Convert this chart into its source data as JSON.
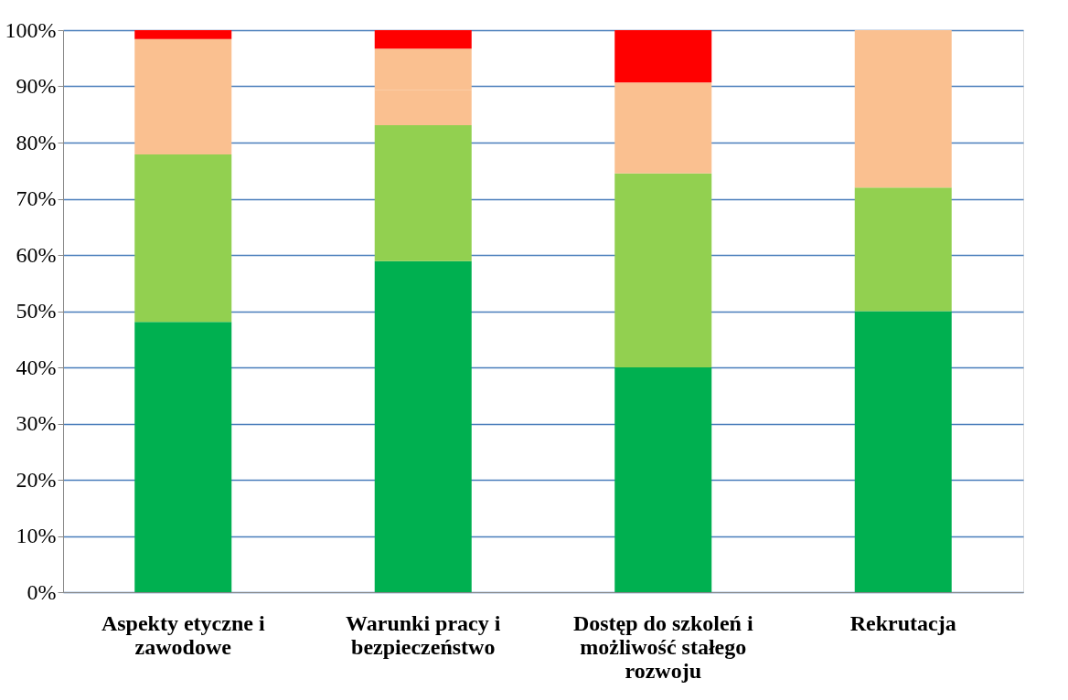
{
  "chart_data": {
    "type": "bar",
    "stacked": true,
    "categories": [
      "Aspekty etyczne i zawodowe",
      "Warunki pracy i bezpieczeństwo",
      "Dostęp do szkoleń i możliwość stałego rozwoju",
      "Rekrutacja"
    ],
    "series": [
      {
        "color": "#00b050",
        "values": [
          48.1,
          58.9,
          40.0,
          50.0
        ]
      },
      {
        "color": "#92d050",
        "values": [
          29.8,
          24.2,
          34.5,
          22.0
        ]
      },
      {
        "color": "#fac090",
        "values": [
          16.1,
          6.2,
          16.2,
          28.0
        ]
      },
      {
        "color": "#fac090",
        "values": [
          4.4,
          7.4,
          null,
          null
        ]
      },
      {
        "color": "#ff0000",
        "values": [
          1.6,
          3.3,
          9.3,
          null
        ]
      }
    ],
    "ylim": [
      0,
      100
    ],
    "yticks": [
      {
        "value": 0,
        "label": "0%"
      },
      {
        "value": 10,
        "label": "10%"
      },
      {
        "value": 20,
        "label": "20%"
      },
      {
        "value": 30,
        "label": "30%"
      },
      {
        "value": 40,
        "label": "40%"
      },
      {
        "value": 50,
        "label": "50%"
      },
      {
        "value": 60,
        "label": "60%"
      },
      {
        "value": 70,
        "label": "70%"
      },
      {
        "value": 80,
        "label": "80%"
      },
      {
        "value": 90,
        "label": "90%"
      },
      {
        "value": 100,
        "label": "100%"
      }
    ],
    "grid": "y"
  }
}
